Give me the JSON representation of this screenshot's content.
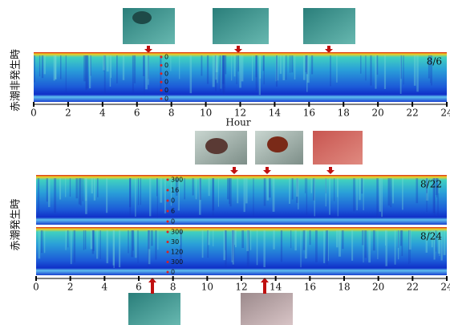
{
  "chart_data": {
    "type": "echogram",
    "xlabel": "Hour",
    "xlim": [
      0,
      24
    ],
    "xticks": [
      0,
      2,
      4,
      6,
      8,
      10,
      12,
      14,
      16,
      18,
      20,
      22,
      24
    ],
    "groups": [
      {
        "label": "赤潮非発生時",
        "panels": [
          {
            "date": "8/6",
            "depth_labels": [
              "0",
              "0",
              "0",
              "0",
              "0",
              "0"
            ]
          }
        ]
      },
      {
        "label": "赤潮発生時",
        "panels": [
          {
            "date": "8/22",
            "depth_labels": [
              "300",
              "16",
              "0",
              "6",
              "0"
            ]
          },
          {
            "date": "8/24",
            "depth_labels": [
              "300",
              "30",
              "120",
              "300",
              "0"
            ]
          }
        ]
      }
    ]
  }
}
